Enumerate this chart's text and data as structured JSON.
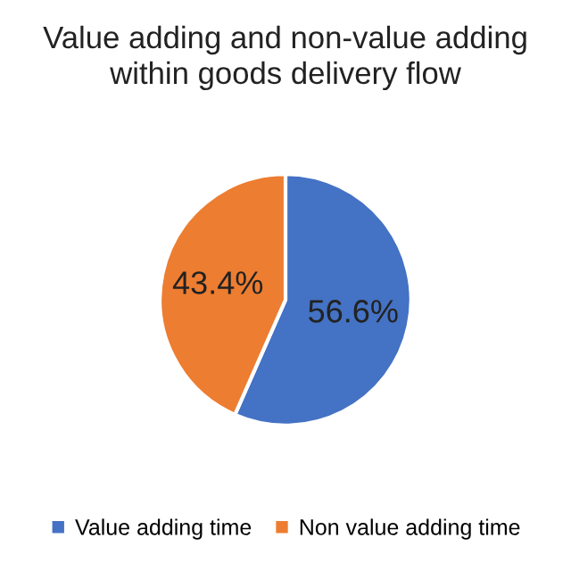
{
  "chart_data": {
    "type": "pie",
    "title": "Value adding and non-value adding\nwithin goods delivery flow",
    "categories": [
      "Value adding time",
      "Non value adding time"
    ],
    "values": [
      56.6,
      43.4
    ],
    "colors": [
      "#4472c4",
      "#ed7d31"
    ],
    "value_labels": [
      "56.6%",
      "43.4%"
    ],
    "legend": "bottom"
  }
}
